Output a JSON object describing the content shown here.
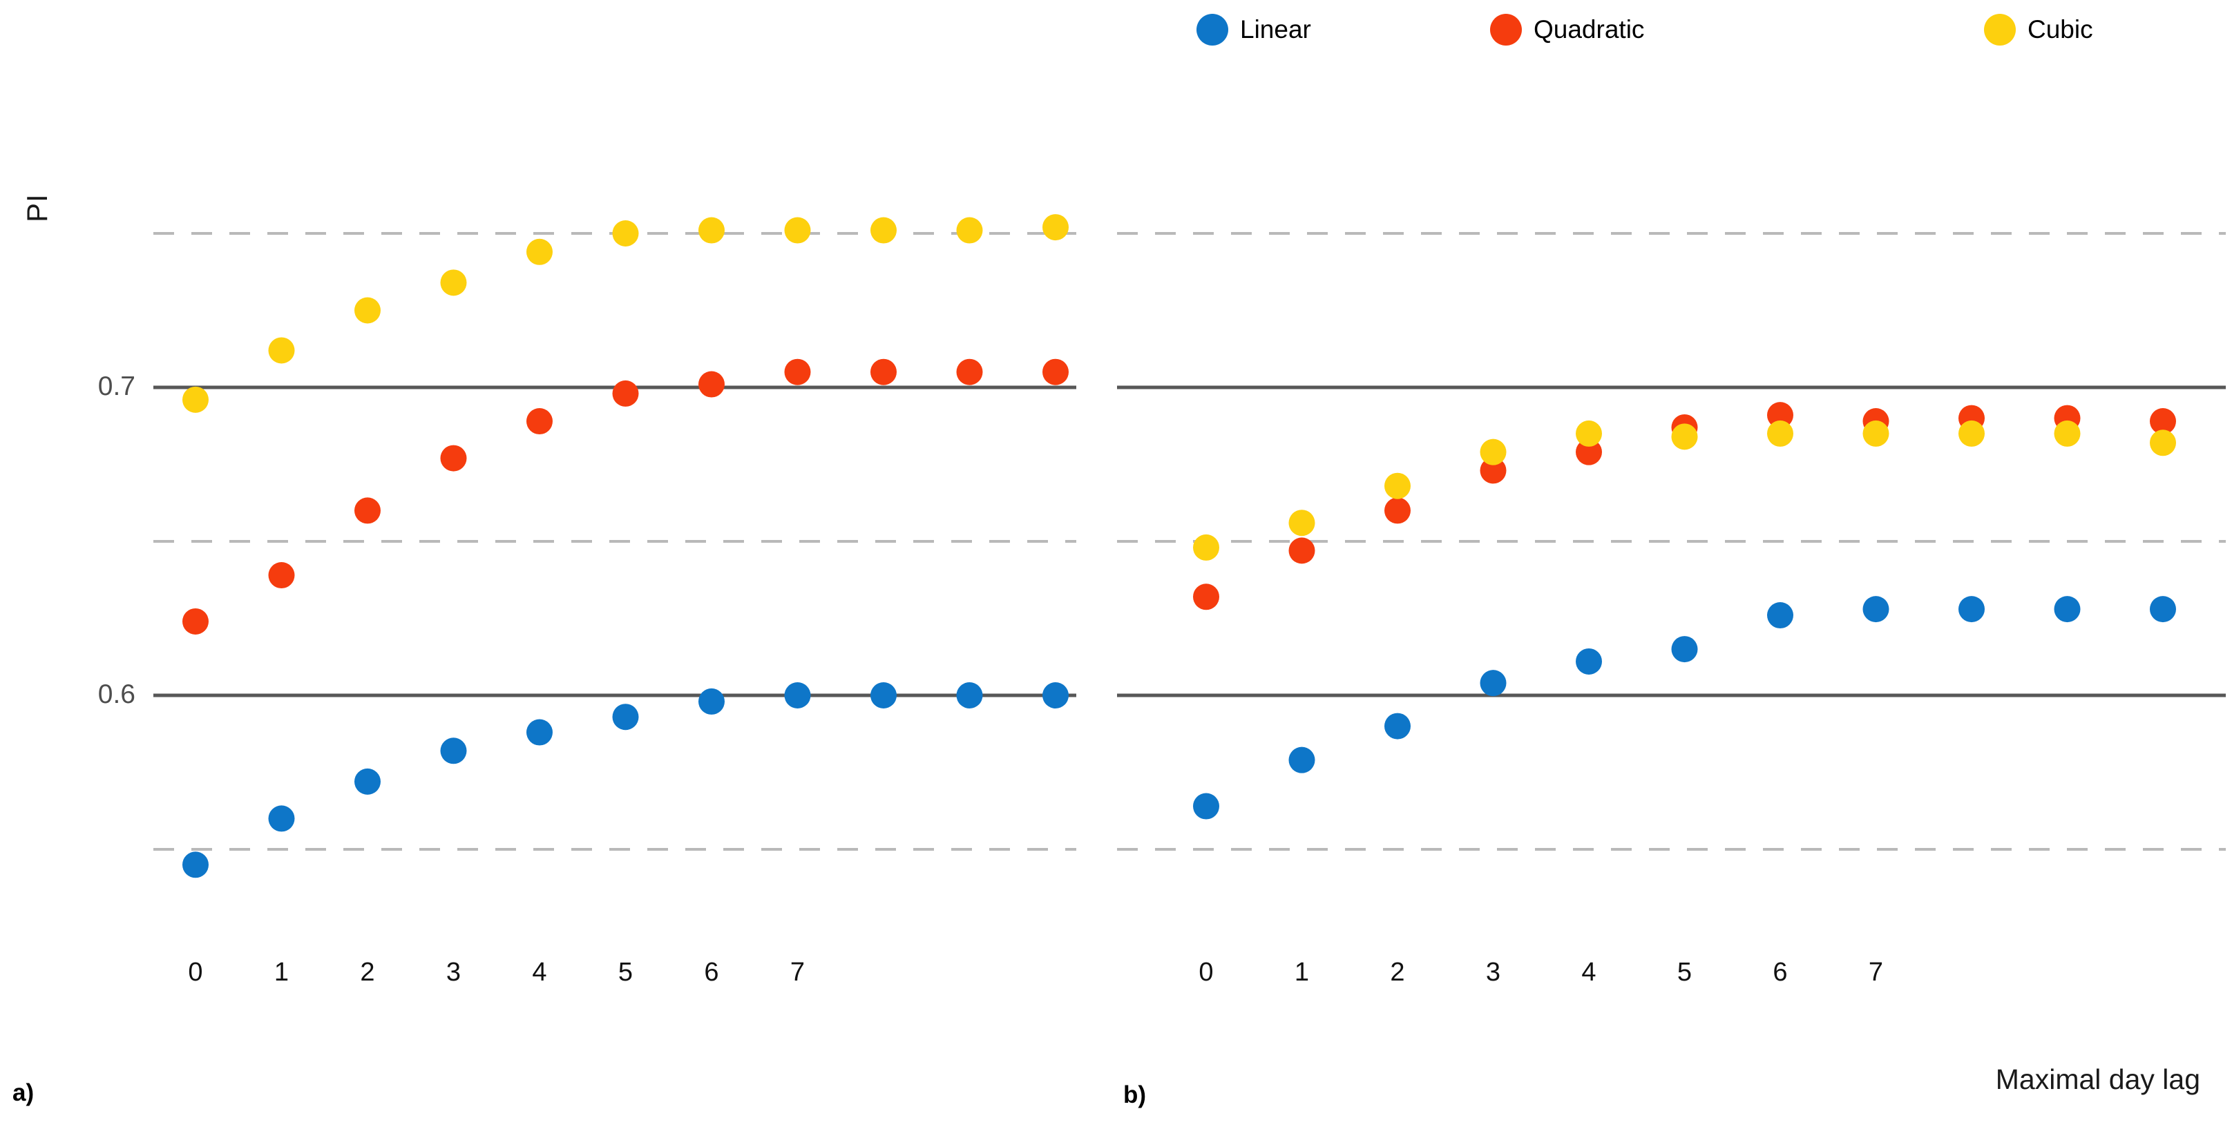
{
  "legend": {
    "items": [
      {
        "label": "Linear",
        "color": "#0e76c8"
      },
      {
        "label": "Quadratic",
        "color": "#f53c0e"
      },
      {
        "label": "Cubic",
        "color": "#fdd00e"
      }
    ]
  },
  "y_axis": {
    "label": "PI",
    "ticks": [
      {
        "label": "0.7",
        "value": 0.7
      },
      {
        "label": "0.6",
        "value": 0.6
      }
    ]
  },
  "x_axis": {
    "title": "Maximal day lag"
  },
  "panels": [
    {
      "tag": "a)"
    },
    {
      "tag": "b)"
    }
  ],
  "chart_data": [
    {
      "type": "scatter",
      "panel": "a",
      "title": "",
      "xlabel": "Maximal day lag",
      "ylabel": "PI",
      "x": [
        0,
        1,
        2,
        3,
        4,
        5,
        6,
        7,
        8,
        9,
        10
      ],
      "x_tick_labels": [
        "0",
        "1",
        "2",
        "3",
        "4",
        "5",
        "6",
        "7"
      ],
      "ylim": [
        0.53,
        0.78
      ],
      "gridlines": {
        "solid": [
          0.7,
          0.6
        ],
        "dashed": [
          0.75,
          0.65,
          0.55
        ]
      },
      "legend_position": "top",
      "series": [
        {
          "name": "Linear",
          "color": "#0e76c8",
          "values": [
            0.545,
            0.56,
            0.572,
            0.582,
            0.588,
            0.593,
            0.598,
            0.6,
            0.6,
            0.6,
            0.6
          ]
        },
        {
          "name": "Quadratic",
          "color": "#f53c0e",
          "values": [
            0.624,
            0.639,
            0.66,
            0.677,
            0.689,
            0.698,
            0.701,
            0.705,
            0.705,
            0.705,
            0.705
          ]
        },
        {
          "name": "Cubic",
          "color": "#fdd00e",
          "values": [
            0.696,
            0.712,
            0.725,
            0.734,
            0.744,
            0.75,
            0.751,
            0.751,
            0.751,
            0.751,
            0.752
          ]
        }
      ]
    },
    {
      "type": "scatter",
      "panel": "b",
      "title": "",
      "xlabel": "Maximal day lag",
      "ylabel": "PI",
      "x": [
        0,
        1,
        2,
        3,
        4,
        5,
        6,
        7,
        8,
        9,
        10
      ],
      "x_tick_labels": [
        "0",
        "1",
        "2",
        "3",
        "4",
        "5",
        "6",
        "7"
      ],
      "ylim": [
        0.53,
        0.78
      ],
      "gridlines": {
        "solid": [
          0.7,
          0.6
        ],
        "dashed": [
          0.75,
          0.65,
          0.55
        ]
      },
      "legend_position": "top",
      "series": [
        {
          "name": "Linear",
          "color": "#0e76c8",
          "values": [
            0.564,
            0.579,
            0.59,
            0.604,
            0.611,
            0.615,
            0.626,
            0.628,
            0.628,
            0.628,
            0.628
          ]
        },
        {
          "name": "Quadratic",
          "color": "#f53c0e",
          "values": [
            0.632,
            0.647,
            0.66,
            0.673,
            0.679,
            0.687,
            0.691,
            0.689,
            0.69,
            0.69,
            0.689
          ]
        },
        {
          "name": "Cubic",
          "color": "#fdd00e",
          "values": [
            0.648,
            0.656,
            0.668,
            0.679,
            0.685,
            0.684,
            0.685,
            0.685,
            0.685,
            0.685,
            0.682
          ]
        }
      ]
    }
  ]
}
